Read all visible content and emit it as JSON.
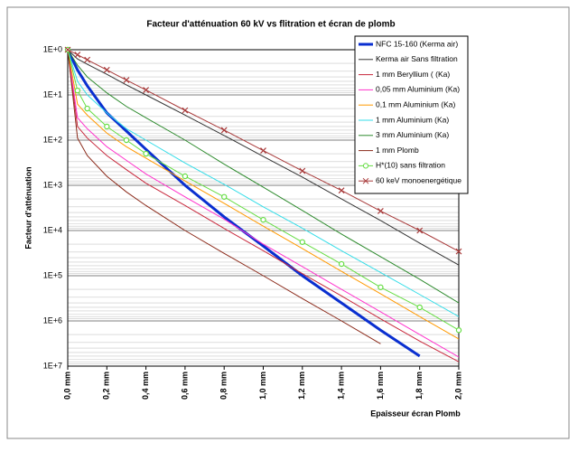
{
  "chart_data": {
    "type": "line",
    "title": "Facteur d'atténuation 60 kV vs flitration et écran de plomb",
    "x_label": "Epaisseur écran Plomb",
    "y_label": "Facteur d'atténuation",
    "x": [
      0,
      0.05,
      0.1,
      0.2,
      0.3,
      0.4,
      0.6,
      0.8,
      1.0,
      1.2,
      1.4,
      1.6,
      1.8,
      2.0
    ],
    "xlim": [
      0,
      2.0
    ],
    "xticks": [
      {
        "value": 0,
        "label": "0,0 mm"
      },
      {
        "value": 0.2,
        "label": "0,2 mm"
      },
      {
        "value": 0.4,
        "label": "0,4 mm"
      },
      {
        "value": 0.6,
        "label": "0,6 mm"
      },
      {
        "value": 0.8,
        "label": "0,8 mm"
      },
      {
        "value": 1.0,
        "label": "1,0 mm"
      },
      {
        "value": 1.2,
        "label": "1,2 mm"
      },
      {
        "value": 1.4,
        "label": "1,4 mm"
      },
      {
        "value": 1.6,
        "label": "1,6 mm"
      },
      {
        "value": 1.8,
        "label": "1,8 mm"
      },
      {
        "value": 2.0,
        "label": "2,0 mm"
      }
    ],
    "ylim": [
      1,
      10000000
    ],
    "y_reversed": true,
    "log_y": true,
    "grid": true,
    "minor_grid": true,
    "legend": "top-right",
    "yticks": [
      {
        "value": 1,
        "label": "1E+0"
      },
      {
        "value": 10,
        "label": "1E+1"
      },
      {
        "value": 100,
        "label": "1E+2"
      },
      {
        "value": 1000,
        "label": "1E+3"
      },
      {
        "value": 10000,
        "label": "1E+4"
      },
      {
        "value": 100000,
        "label": "1E+5"
      },
      {
        "value": 1000000,
        "label": "1E+6"
      },
      {
        "value": 10000000,
        "label": "1E+7"
      }
    ],
    "series": [
      {
        "name": "NFC 15-160 (Kerma air)",
        "color": "#0a2fd0",
        "width": 3,
        "values": [
          1,
          2.8,
          6.3,
          25,
          63,
          160,
          1000,
          5000,
          22000,
          100000,
          400000,
          1600000,
          6000000,
          null
        ]
      },
      {
        "name": "Kerma air Sans filtration",
        "color": "#333333",
        "width": 1,
        "values": [
          1,
          1.6,
          2.1,
          3.5,
          6,
          10,
          28,
          79,
          230,
          660,
          2000,
          6000,
          19000,
          58000
        ]
      },
      {
        "name": "1 mm Beryllium ( (Ka)",
        "color": "#c8283c",
        "width": 1,
        "values": [
          1,
          50,
          90,
          220,
          450,
          900,
          2800,
          9000,
          28000,
          90000,
          280000,
          900000,
          2800000,
          8000000
        ]
      },
      {
        "name": "0,05 mm Aluminium  (Ka)",
        "color": "#ff33cc",
        "width": 1,
        "values": [
          1,
          32,
          56,
          140,
          280,
          560,
          1800,
          5600,
          20000,
          63000,
          200000,
          630000,
          2000000,
          6300000
        ]
      },
      {
        "name": "0,1 mm Aluminium (Ka)",
        "color": "#ff9900",
        "width": 1,
        "values": [
          1,
          16,
          28,
          70,
          140,
          250,
          800,
          2500,
          8000,
          25000,
          80000,
          250000,
          800000,
          2500000
        ]
      },
      {
        "name": "1 mm Aluminium  (Ka)",
        "color": "#33dde8",
        "width": 1,
        "values": [
          1,
          5,
          10,
          25,
          56,
          100,
          320,
          950,
          3000,
          8900,
          28000,
          85000,
          260000,
          800000
        ]
      },
      {
        "name": "3 mm Aluminium  (Ka)",
        "color": "#2e8b2e",
        "width": 1,
        "values": [
          1,
          2.2,
          4,
          9,
          18,
          32,
          100,
          340,
          1100,
          3600,
          12000,
          38000,
          120000,
          400000
        ]
      },
      {
        "name": "1 mm Plomb",
        "color": "#8b2a1a",
        "width": 1,
        "values": [
          1,
          90,
          220,
          630,
          1400,
          2800,
          10000,
          32000,
          100000,
          320000,
          1000000,
          3200000,
          null,
          null
        ]
      },
      {
        "name": "H*(10) sans filtration",
        "color": "#66dd44",
        "width": 1,
        "marker": "o",
        "values": [
          1,
          8,
          20,
          50,
          100,
          200,
          630,
          1800,
          5800,
          18000,
          55000,
          180000,
          500000,
          1600000
        ]
      },
      {
        "name": "60 keV monoenergétique",
        "color": "#a83a3a",
        "width": 1,
        "marker": "x",
        "values": [
          1,
          1.29,
          1.67,
          2.8,
          4.7,
          7.8,
          22,
          60,
          170,
          480,
          1300,
          3700,
          10000,
          29000
        ]
      }
    ]
  }
}
